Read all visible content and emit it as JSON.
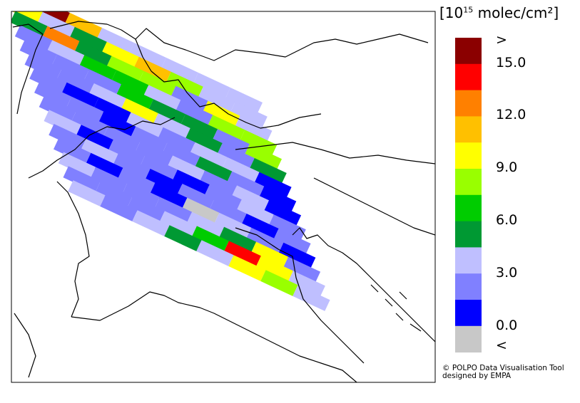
{
  "legend": {
    "title_prefix": "[10",
    "title_exp": "15",
    "title_suffix": " molec/cm²]",
    "colors": [
      "#8b0000",
      "#ff0000",
      "#ff8000",
      "#ffc000",
      "#ffff00",
      "#99ff00",
      "#00cc00",
      "#009933",
      "#bfbfff",
      "#8080ff",
      "#0000ff",
      "#c8c8c8"
    ],
    "labels": [
      ">",
      "15.0",
      "12.0",
      "9.0",
      "6.0",
      "3.0",
      "0.0",
      "<"
    ]
  },
  "credit": {
    "line1": "© POLPO Data Visualisation Tool",
    "line2": "designed by EMPA"
  },
  "map": {
    "swath_rows": [
      [
        "#8b0000",
        "#8b0000",
        "#ffc000",
        "#bfbfff",
        "#bfbfff",
        "#bfbfff",
        "#bfbfff",
        "#bfbfff"
      ],
      [
        "#ffff00",
        "#bfbfff",
        "#009933",
        "#ffff00",
        "#ffc000",
        "#99ff00",
        "#bfbfff",
        "#bfbfff"
      ],
      [
        "#009933",
        "#ff8000",
        "#009933",
        "#99ff00",
        "#99ff00",
        "#8080ff",
        "#ffff00",
        "#bfbfff"
      ],
      [
        "#8080ff",
        "#bfbfff",
        "#00cc00",
        "#00cc00",
        "#bfbfff",
        "#8080ff",
        "#99ff00",
        "#99ff00"
      ],
      [
        "#8080ff",
        "#8080ff",
        "#8080ff",
        "#00cc00",
        "#009933",
        "#009933",
        "#8080ff",
        "#99ff00"
      ],
      [
        "#8080ff",
        "#8080ff",
        "#bfbfff",
        "#ffff00",
        "#bfbfff",
        "#009933",
        "#8080ff",
        "#009933"
      ],
      [
        "#8080ff",
        "#0000ff",
        "#0000ff",
        "#bfbfff",
        "#8080ff",
        "#bfbfff",
        "#bfbfff",
        "#0000ff"
      ],
      [
        "#8080ff",
        "#8080ff",
        "#0000ff",
        "#8080ff",
        "#8080ff",
        "#009933",
        "#8080ff",
        "#0000ff"
      ],
      [
        "#8080ff",
        "#8080ff",
        "#8080ff",
        "#8080ff",
        "#bfbfff",
        "#8080ff",
        "#bfbfff",
        "#0000ff"
      ],
      [
        "#bfbfff",
        "#0000ff",
        "#8080ff",
        "#8080ff",
        "#0000ff",
        "#8080ff",
        "#bfbfff",
        "#8080ff"
      ],
      [
        "#8080ff",
        "#bfbfff",
        "#8080ff",
        "#0000ff",
        "#8080ff",
        "#8080ff",
        "#0000ff",
        "#8080ff"
      ],
      [
        "#8080ff",
        "#0000ff",
        "#8080ff",
        "#0000ff",
        "#c8c8c8",
        "#bfbfff",
        "#8080ff",
        "#0000ff"
      ],
      [
        "#bfbfff",
        "#8080ff",
        "#8080ff",
        "#8080ff",
        "#bfbfff",
        "#009933",
        "#ffff00",
        "#8080ff"
      ],
      [
        "#8080ff",
        "#8080ff",
        "#8080ff",
        "#bfbfff",
        "#00cc00",
        "#ff0000",
        "#ffff00",
        "#bfbfff"
      ],
      [
        "#bfbfff",
        "#8080ff",
        "#bfbfff",
        "#009933",
        "#bfbfff",
        "#ffff00",
        "#99ff00",
        "#bfbfff"
      ]
    ]
  }
}
